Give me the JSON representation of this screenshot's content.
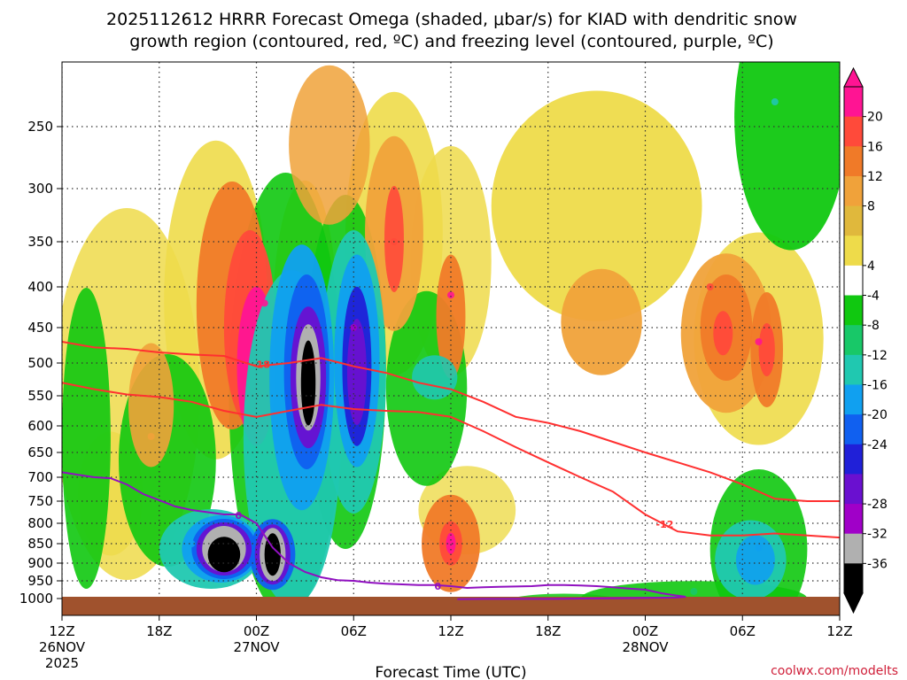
{
  "chart_data": {
    "type": "heatmap",
    "title_line1": "2025112612 HRRR Forecast Omega (shaded, μbar/s) for KIAD with dendritic snow",
    "title_line2": "growth region (contoured, red, ºC) and freezing level (contoured, purple, ºC)",
    "xlabel": "Forecast Time (UTC)",
    "ylabel": "",
    "credit": "coolwx.com/modelts",
    "x_hours": [
      0,
      6,
      12,
      18,
      24,
      30,
      36,
      42,
      48
    ],
    "x_ticks": [
      {
        "hour": 0,
        "label": "12Z",
        "date": "26NOV",
        "year": "2025"
      },
      {
        "hour": 6,
        "label": "18Z"
      },
      {
        "hour": 12,
        "label": "00Z",
        "date": "27NOV"
      },
      {
        "hour": 18,
        "label": "06Z"
      },
      {
        "hour": 24,
        "label": "12Z"
      },
      {
        "hour": 30,
        "label": "18Z"
      },
      {
        "hour": 36,
        "label": "00Z",
        "date": "28NOV"
      },
      {
        "hour": 42,
        "label": "06Z"
      },
      {
        "hour": 48,
        "label": "12Z"
      }
    ],
    "pressure_ticks": [
      250,
      300,
      350,
      400,
      450,
      500,
      550,
      600,
      650,
      700,
      750,
      800,
      850,
      900,
      950,
      1000
    ],
    "ylim_hpa": [
      200,
      1020
    ],
    "colorbar": {
      "labels": [
        "20",
        "16",
        "12",
        "8",
        "4",
        "-4",
        "-8",
        "-12",
        "-16",
        "-20",
        "-24",
        "-28",
        "-32",
        "-36"
      ],
      "colors": [
        "#ff1493",
        "#ff4a3a",
        "#f07a28",
        "#f0a23a",
        "#e0b83c",
        "#eedb4a",
        "#ffffff",
        "#10c810",
        "#18c868",
        "#20c8b0",
        "#10a0f0",
        "#1060f0",
        "#2020d8",
        "#6a10d0",
        "#a000c8",
        "#b0b0b0",
        "#000000"
      ]
    },
    "contour_labels": {
      "dgz_upper": "-18",
      "dgz_lower": "-12",
      "freezing": "0"
    },
    "dgz_top_hpa": {
      "hours": [
        0,
        2,
        4,
        6,
        8,
        10,
        12,
        14,
        16,
        18,
        20,
        22,
        24,
        26,
        28,
        30,
        32,
        34,
        36,
        38,
        40,
        42,
        44,
        46,
        48
      ],
      "values": [
        470,
        478,
        480,
        485,
        488,
        490,
        505,
        500,
        493,
        505,
        515,
        530,
        540,
        560,
        585,
        595,
        610,
        630,
        650,
        670,
        690,
        715,
        745,
        750,
        750
      ]
    },
    "dgz_bottom_hpa": {
      "hours": [
        0,
        2,
        4,
        6,
        8,
        10,
        12,
        14,
        16,
        18,
        20,
        22,
        24,
        26,
        28,
        30,
        32,
        34,
        36,
        38,
        40,
        42,
        44,
        46,
        48
      ],
      "values": [
        530,
        540,
        548,
        552,
        560,
        575,
        585,
        575,
        565,
        572,
        575,
        577,
        585,
        610,
        640,
        670,
        700,
        730,
        780,
        820,
        830,
        830,
        825,
        830,
        835
      ]
    },
    "freezing_level_hpa": {
      "hours": [
        0,
        1,
        2,
        3,
        4,
        5,
        6,
        7,
        8,
        9,
        10,
        11,
        12,
        13,
        14,
        15,
        16,
        17,
        18,
        19,
        20,
        21,
        22,
        23,
        24,
        25,
        26,
        27,
        28,
        29,
        30,
        31,
        32,
        33,
        34,
        35,
        36,
        37,
        38,
        38.5,
        38,
        36,
        34,
        32,
        30,
        28,
        26,
        24.4
      ],
      "values": [
        690,
        695,
        700,
        702,
        715,
        735,
        748,
        762,
        770,
        775,
        780,
        780,
        800,
        860,
        900,
        925,
        940,
        948,
        950,
        955,
        958,
        960,
        962,
        962,
        965,
        970,
        968,
        967,
        966,
        965,
        962,
        962,
        963,
        965,
        968,
        972,
        975,
        985,
        992,
        995,
        997,
        998,
        999,
        1000,
        1001,
        1001,
        1001,
        1002
      ]
    },
    "omega_features_ubar_per_s": [
      {
        "hour": 5.5,
        "hpa": 620,
        "value": 8
      },
      {
        "hour": 8,
        "hpa": 850,
        "value": -16
      },
      {
        "hour": 10,
        "hpa": 880,
        "value": -36
      },
      {
        "hour": 12.5,
        "hpa": 420,
        "value": 20
      },
      {
        "hour": 13,
        "hpa": 880,
        "value": -36
      },
      {
        "hour": 15,
        "hpa": 500,
        "value": -36
      },
      {
        "hour": 18,
        "hpa": 450,
        "value": -28
      },
      {
        "hour": 20.5,
        "hpa": 350,
        "value": 16
      },
      {
        "hour": 24,
        "hpa": 410,
        "value": 20
      },
      {
        "hour": 24,
        "hpa": 840,
        "value": 20
      },
      {
        "hour": 40,
        "hpa": 400,
        "value": 16
      },
      {
        "hour": 43,
        "hpa": 470,
        "value": 20
      },
      {
        "hour": 43,
        "hpa": 860,
        "value": -16
      },
      {
        "hour": 44,
        "hpa": 230,
        "value": -12
      },
      {
        "hour": 39,
        "hpa": 980,
        "value": -8
      }
    ]
  }
}
